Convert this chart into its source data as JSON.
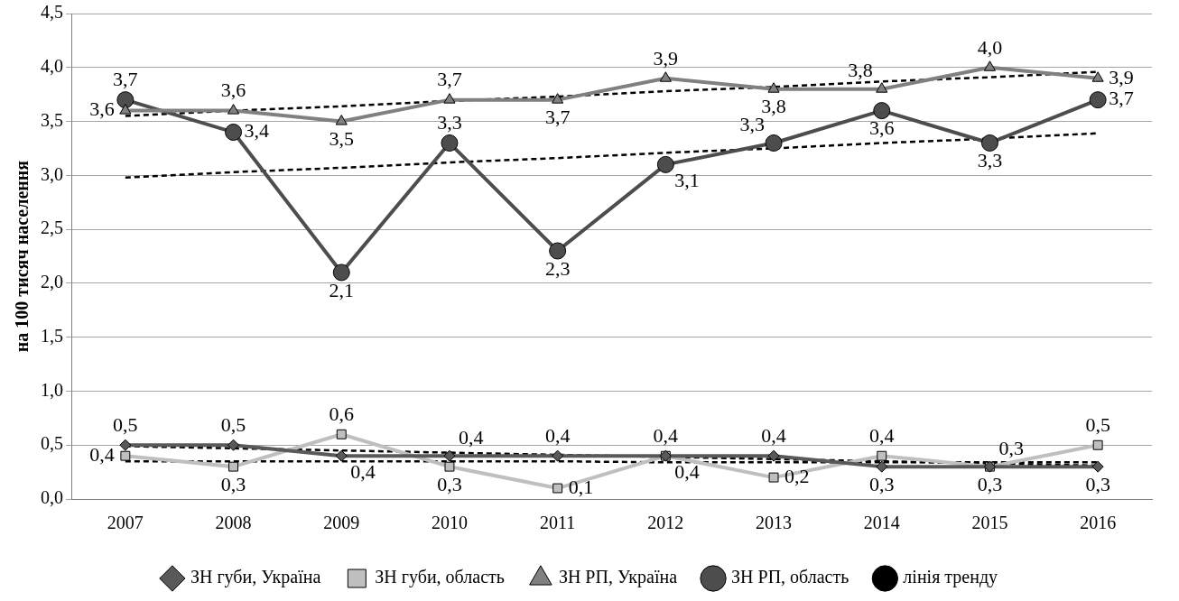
{
  "chart_data": {
    "type": "line",
    "ylabel": "на 100 тисяч населення",
    "categories": [
      "2007",
      "2008",
      "2009",
      "2010",
      "2011",
      "2012",
      "2013",
      "2014",
      "2015",
      "2016"
    ],
    "ylim": [
      0,
      4.5
    ],
    "yticks": [
      {
        "value": 0,
        "label": "0,0"
      },
      {
        "value": 0.5,
        "label": "0,5"
      },
      {
        "value": 1,
        "label": "1,0"
      },
      {
        "value": 1.5,
        "label": "1,5"
      },
      {
        "value": 2,
        "label": "2,0"
      },
      {
        "value": 2.5,
        "label": "2,5"
      },
      {
        "value": 3,
        "label": "3,0"
      },
      {
        "value": 3.5,
        "label": "3,5"
      },
      {
        "value": 4,
        "label": "4,0"
      },
      {
        "value": 4.5,
        "label": "4,5"
      }
    ],
    "grid": "y",
    "legend": "bottom",
    "line_style": "solid",
    "series": [
      {
        "name": "ЗН губи, Україна",
        "color": "#595959",
        "marker": "diamond",
        "values": [
          0.5,
          0.5,
          0.4,
          0.4,
          0.4,
          0.4,
          0.4,
          0.3,
          0.3,
          0.3
        ],
        "value_labels": [
          "0,5",
          "0,5",
          "0,4",
          "0,4",
          "0,4",
          "0,4",
          "0,4",
          "0,3",
          "0,3",
          "0,3"
        ]
      },
      {
        "name": "ЗН губи, область",
        "color": "#bfbfbf",
        "marker": "square",
        "values": [
          0.4,
          0.3,
          0.6,
          0.3,
          0.1,
          0.4,
          0.2,
          0.4,
          0.3,
          0.5
        ],
        "value_labels": [
          "0,4",
          "0,3",
          "0,6",
          "0,3",
          "0,1",
          "0,4",
          "0,2",
          "0,4",
          "0,3",
          "0,5"
        ]
      },
      {
        "name": "ЗН РП, Україна",
        "color": "#808080",
        "marker": "triangle",
        "values": [
          3.6,
          3.6,
          3.5,
          3.7,
          3.7,
          3.9,
          3.8,
          3.8,
          4.0,
          3.9
        ],
        "value_labels": [
          "3,6",
          "3,6",
          "3,5",
          "3,7",
          "3,7",
          "3,9",
          "3,8",
          "3,8",
          "4,0",
          "3,9"
        ]
      },
      {
        "name": "ЗН РП, область",
        "color": "#4d4d4d",
        "marker": "circle",
        "values": [
          3.7,
          3.4,
          2.1,
          3.3,
          2.3,
          3.1,
          3.3,
          3.6,
          3.3,
          3.7
        ],
        "value_labels": [
          "3,7",
          "3,4",
          "2,1",
          "3,3",
          "2,3",
          "3,1",
          "3,3",
          "3,6",
          "3,3",
          "3,7"
        ]
      },
      {
        "name": "лінія тренду",
        "color": "#000000",
        "marker": "none",
        "line_style": "dashed",
        "values": [
          3.55,
          3.6,
          3.64,
          3.69,
          3.73,
          3.78,
          3.82,
          3.87,
          3.91,
          3.96
        ]
      },
      {
        "color": "#000000",
        "marker": "none",
        "line_style": "dashed",
        "values": [
          2.98,
          3.03,
          3.07,
          3.12,
          3.16,
          3.21,
          3.25,
          3.3,
          3.34,
          3.39
        ]
      },
      {
        "color": "#000000",
        "marker": "none",
        "line_style": "dashed",
        "values": [
          0.49,
          0.47,
          0.45,
          0.43,
          0.41,
          0.39,
          0.37,
          0.35,
          0.33,
          0.31
        ]
      },
      {
        "color": "#000000",
        "marker": "none",
        "line_style": "dashed",
        "values": [
          0.35,
          0.35,
          0.35,
          0.35,
          0.35,
          0.34,
          0.34,
          0.34,
          0.34,
          0.34
        ]
      }
    ]
  }
}
